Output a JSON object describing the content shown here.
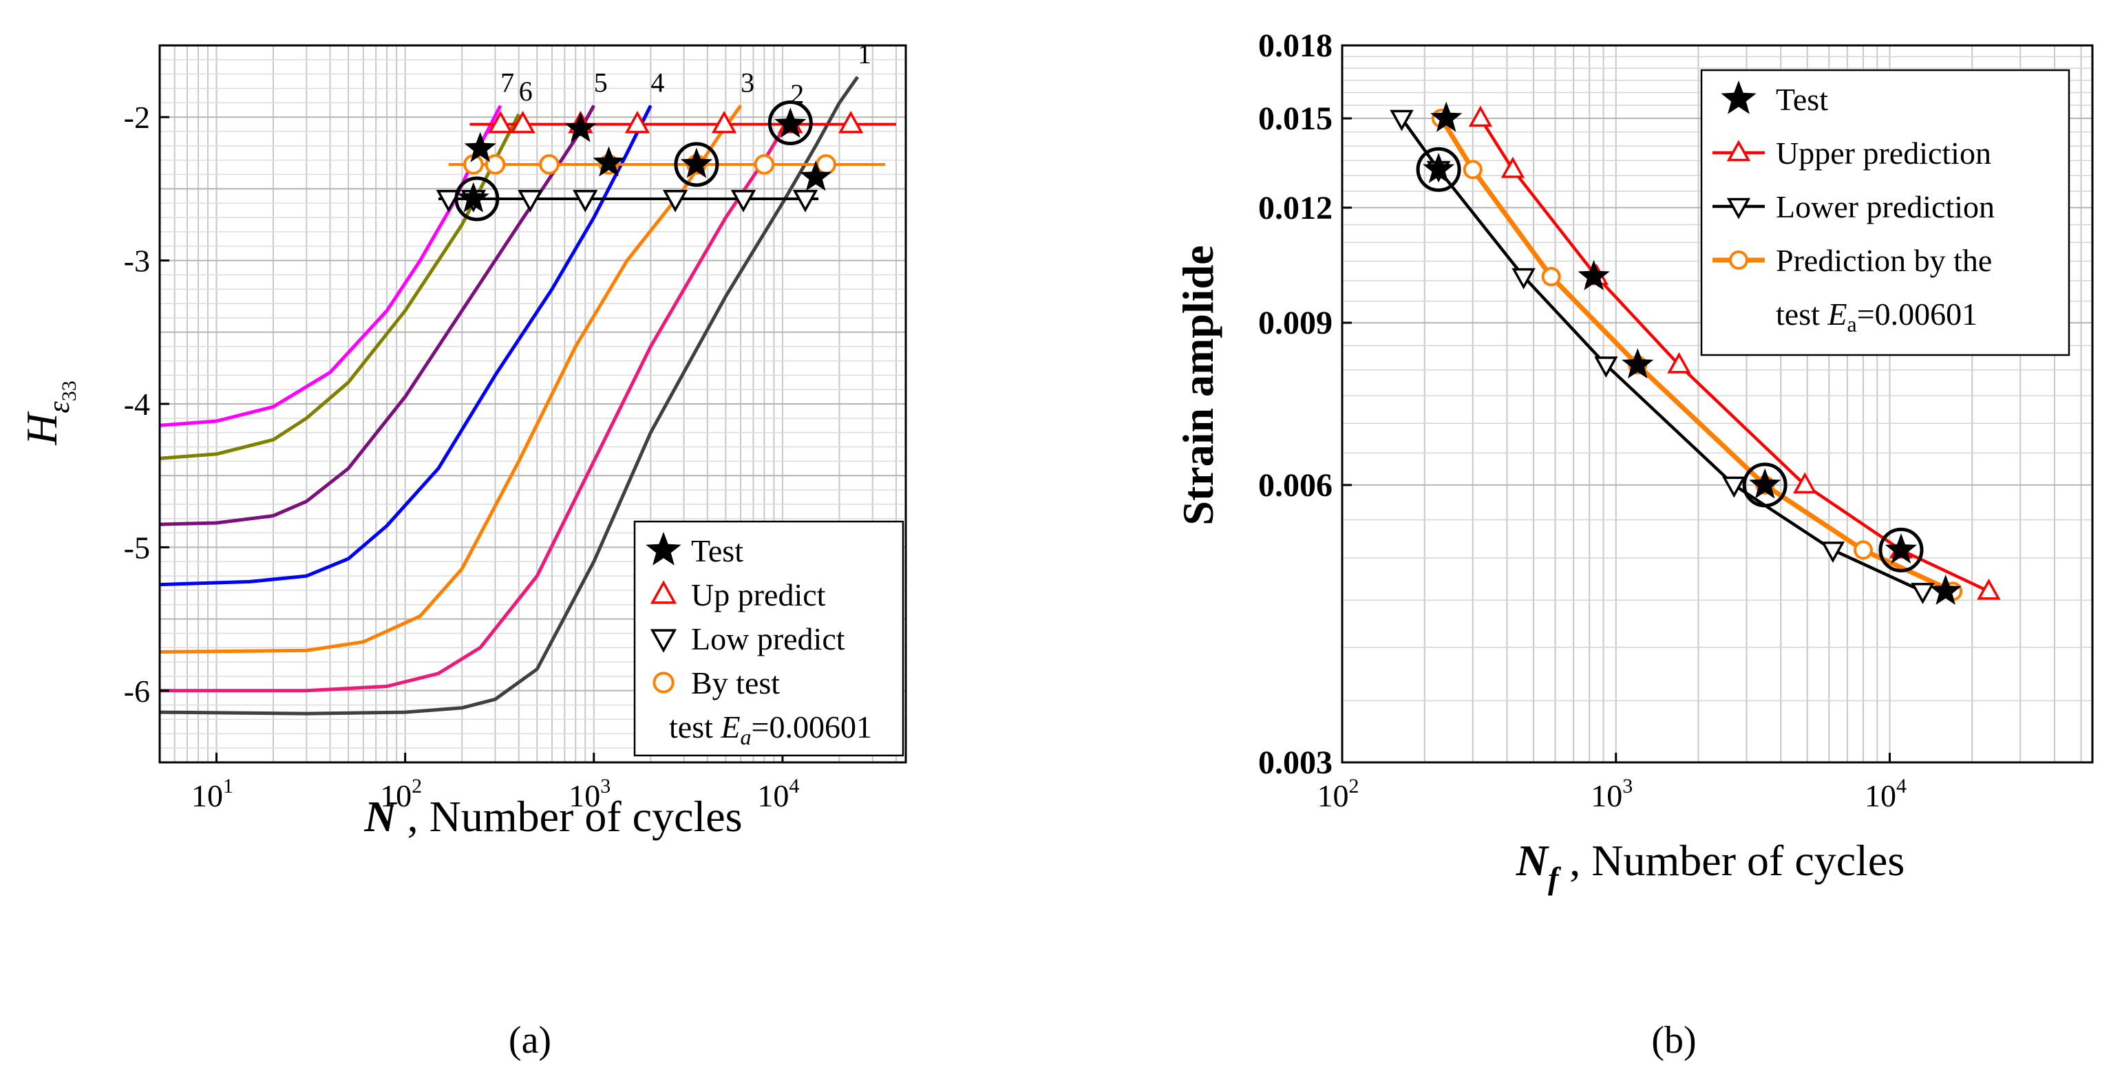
{
  "chart_data": [
    {
      "panel": "(a)",
      "type": "line",
      "xscale": "log",
      "xlim": [
        5,
        45000
      ],
      "ylim": [
        -6.5,
        -1.5
      ],
      "xticks": [
        10,
        100,
        1000,
        10000
      ],
      "xtick_labels": [
        [
          "10",
          "1"
        ],
        [
          "10",
          "2"
        ],
        [
          "10",
          "3"
        ],
        [
          "10",
          "4"
        ]
      ],
      "yticks": [
        -6,
        -5,
        -4,
        -3,
        -2
      ],
      "ytick_labels": [
        "-6",
        "-5",
        "-4",
        "-3",
        "-2"
      ],
      "xlabel_var": "N",
      "xlabel_text": " , Number of cycles",
      "ylabel_var": "H",
      "ylabel_sub": "ε",
      "ylabel_subsub": "33",
      "grid": true,
      "curves": [
        {
          "label": "1",
          "color": "#404040",
          "points": [
            [
              5,
              -6.15
            ],
            [
              30,
              -6.16
            ],
            [
              100,
              -6.15
            ],
            [
              200,
              -6.12
            ],
            [
              300,
              -6.06
            ],
            [
              500,
              -5.85
            ],
            [
              1000,
              -5.1
            ],
            [
              2000,
              -4.2
            ],
            [
              5000,
              -3.25
            ],
            [
              10000,
              -2.6
            ],
            [
              15000,
              -2.2
            ],
            [
              20000,
              -1.9
            ],
            [
              25000,
              -1.72
            ]
          ]
        },
        {
          "label": "2",
          "color": "#ee1a7a",
          "points": [
            [
              5,
              -6.0
            ],
            [
              30,
              -6.0
            ],
            [
              80,
              -5.97
            ],
            [
              150,
              -5.88
            ],
            [
              250,
              -5.7
            ],
            [
              500,
              -5.2
            ],
            [
              1000,
              -4.4
            ],
            [
              2000,
              -3.6
            ],
            [
              5000,
              -2.7
            ],
            [
              8000,
              -2.3
            ],
            [
              11000,
              -2.0
            ]
          ]
        },
        {
          "label": "3",
          "color": "#ff8000",
          "points": [
            [
              5,
              -5.73
            ],
            [
              30,
              -5.72
            ],
            [
              60,
              -5.66
            ],
            [
              120,
              -5.48
            ],
            [
              200,
              -5.15
            ],
            [
              400,
              -4.4
            ],
            [
              800,
              -3.6
            ],
            [
              1500,
              -3.0
            ],
            [
              3000,
              -2.5
            ],
            [
              4500,
              -2.15
            ],
            [
              6000,
              -1.92
            ]
          ]
        },
        {
          "label": "4",
          "color": "#0000ff",
          "points": [
            [
              5,
              -5.26
            ],
            [
              15,
              -5.24
            ],
            [
              30,
              -5.2
            ],
            [
              50,
              -5.08
            ],
            [
              80,
              -4.85
            ],
            [
              150,
              -4.45
            ],
            [
              300,
              -3.8
            ],
            [
              600,
              -3.2
            ],
            [
              1000,
              -2.7
            ],
            [
              1500,
              -2.25
            ],
            [
              2000,
              -1.92
            ]
          ]
        },
        {
          "label": "5",
          "color": "#7b0f7b",
          "points": [
            [
              5,
              -4.84
            ],
            [
              10,
              -4.83
            ],
            [
              20,
              -4.78
            ],
            [
              30,
              -4.68
            ],
            [
              50,
              -4.45
            ],
            [
              100,
              -3.95
            ],
            [
              200,
              -3.35
            ],
            [
              400,
              -2.75
            ],
            [
              600,
              -2.4
            ],
            [
              800,
              -2.15
            ],
            [
              1000,
              -1.92
            ]
          ]
        },
        {
          "label": "6",
          "color": "#808000",
          "points": [
            [
              5,
              -4.38
            ],
            [
              10,
              -4.35
            ],
            [
              20,
              -4.25
            ],
            [
              30,
              -4.1
            ],
            [
              50,
              -3.85
            ],
            [
              100,
              -3.35
            ],
            [
              150,
              -3.0
            ],
            [
              200,
              -2.75
            ],
            [
              300,
              -2.3
            ],
            [
              400,
              -1.98
            ]
          ]
        },
        {
          "label": "7",
          "color": "#ff00ff",
          "points": [
            [
              5,
              -4.15
            ],
            [
              10,
              -4.12
            ],
            [
              20,
              -4.02
            ],
            [
              40,
              -3.78
            ],
            [
              80,
              -3.35
            ],
            [
              120,
              -3.0
            ],
            [
              180,
              -2.6
            ],
            [
              260,
              -2.15
            ],
            [
              320,
              -1.92
            ]
          ]
        }
      ],
      "hlines": [
        {
          "series": "Up predict",
          "color": "#ff0000",
          "y": -2.05,
          "x": [
            220,
            40000
          ]
        },
        {
          "series": "By test",
          "color": "#ff8000",
          "y": -2.33,
          "x": [
            170,
            35000
          ]
        },
        {
          "series": "Low predict",
          "color": "#000000",
          "y": -2.57,
          "x": [
            150,
            15500
          ]
        }
      ],
      "series": [
        {
          "name": "Test",
          "marker": "star",
          "color": "#000000",
          "x": [
            250,
            850,
            1200,
            3500,
            11000,
            15000,
            230
          ],
          "y": [
            -2.22,
            -2.08,
            -2.32,
            -2.33,
            -2.05,
            -2.42,
            -2.57
          ]
        },
        {
          "name": "Up predict",
          "marker": "triangle-up",
          "color": "#ff0000",
          "x": [
            320,
            420,
            850,
            1700,
            4900,
            11000,
            23000
          ],
          "y": [
            -2.05,
            -2.05,
            -2.05,
            -2.05,
            -2.05,
            -2.05,
            -2.05
          ]
        },
        {
          "name": "Low predict",
          "marker": "triangle-down",
          "color": "#000000",
          "x": [
            170,
            230,
            460,
            900,
            2700,
            6200,
            13200
          ],
          "y": [
            -2.57,
            -2.57,
            -2.57,
            -2.57,
            -2.57,
            -2.57,
            -2.57
          ]
        },
        {
          "name": "By test",
          "marker": "circle",
          "color": "#ff8000",
          "x": [
            230,
            300,
            580,
            1200,
            3500,
            8000,
            17000
          ],
          "y": [
            -2.33,
            -2.33,
            -2.33,
            -2.33,
            -2.33,
            -2.33,
            -2.33
          ]
        }
      ],
      "highlight_circles": [
        {
          "x": 11000,
          "y": -2.04
        },
        {
          "x": 3500,
          "y": -2.33
        },
        {
          "x": 240,
          "y": -2.57
        }
      ],
      "legend": {
        "placement": "bottom-right",
        "entries": [
          {
            "label": "Test",
            "marker": "star",
            "color": "#000000"
          },
          {
            "label": "Up predict",
            "marker": "triangle-up",
            "color": "#ff0000"
          },
          {
            "label": "Low predict",
            "marker": "triangle-down",
            "color": "#000000"
          },
          {
            "label": "By test",
            "marker": "circle",
            "color": "#ff8000"
          }
        ],
        "note_prefix": "test ",
        "note_var": "E",
        "note_sub": "a",
        "note_value": "=0.00601"
      }
    },
    {
      "panel": "(b)",
      "type": "line",
      "xscale": "log",
      "yscale": "log",
      "xlim": [
        100,
        55000
      ],
      "ylim": [
        0.003,
        0.018
      ],
      "xticks": [
        100,
        1000,
        10000
      ],
      "xtick_labels": [
        [
          "10",
          "2"
        ],
        [
          "10",
          "3"
        ],
        [
          "10",
          "4"
        ]
      ],
      "yticks": [
        0.003,
        0.006,
        0.009,
        0.012,
        0.015,
        0.018
      ],
      "ytick_labels": [
        "0.003",
        "0.006",
        "0.009",
        "0.012",
        "0.015",
        "0.018"
      ],
      "xlabel_var": "N",
      "xlabel_sub": "f",
      "xlabel_text": " , Number of cycles",
      "ylabel": "Strain amplide",
      "grid": true,
      "series": [
        {
          "name": "Test",
          "marker": "star",
          "color": "#000000",
          "line": false,
          "x": [
            240,
            830,
            1200,
            3500,
            11000,
            16000,
            225
          ],
          "y": [
            0.015,
            0.0101,
            0.0081,
            0.006,
            0.0051,
            0.0046,
            0.0132
          ]
        },
        {
          "name": "Upper prediction",
          "marker": "triangle-up",
          "color": "#ff0000",
          "line": true,
          "x": [
            320,
            420,
            850,
            1700,
            4900,
            11000,
            23000
          ],
          "y": [
            0.015,
            0.0132,
            0.0101,
            0.0081,
            0.006,
            0.0051,
            0.0046
          ]
        },
        {
          "name": "Lower prediction",
          "marker": "triangle-down",
          "color": "#000000",
          "line": true,
          "x": [
            165,
            225,
            460,
            920,
            2700,
            6200,
            13200
          ],
          "y": [
            0.015,
            0.0132,
            0.0101,
            0.0081,
            0.006,
            0.0051,
            0.0046
          ]
        },
        {
          "name": "Prediction by the test E_a=0.00601",
          "marker": "circle",
          "color": "#ff8000",
          "line": true,
          "x": [
            230,
            300,
            580,
            1200,
            3500,
            8000,
            17000
          ],
          "y": [
            0.015,
            0.0132,
            0.0101,
            0.0081,
            0.006,
            0.0051,
            0.0046
          ]
        }
      ],
      "highlight_circles": [
        {
          "x": 225,
          "y": 0.0132
        },
        {
          "x": 3500,
          "y": 0.006
        },
        {
          "x": 11000,
          "y": 0.0051
        }
      ],
      "legend": {
        "placement": "top-right",
        "entries": [
          {
            "label": "Test",
            "marker": "star",
            "color": "#000000"
          },
          {
            "label": "Upper prediction",
            "marker": "triangle-up",
            "color": "#ff0000"
          },
          {
            "label": "Lower prediction",
            "marker": "triangle-down",
            "color": "#000000"
          },
          {
            "label": "Prediction by the",
            "marker": "circle",
            "color": "#ff8000"
          }
        ],
        "note_prefix": "test ",
        "note_var": "E",
        "note_sub": "a",
        "note_value": "=0.00601"
      }
    }
  ],
  "captions": {
    "a": "(a)",
    "b": "(b)"
  }
}
